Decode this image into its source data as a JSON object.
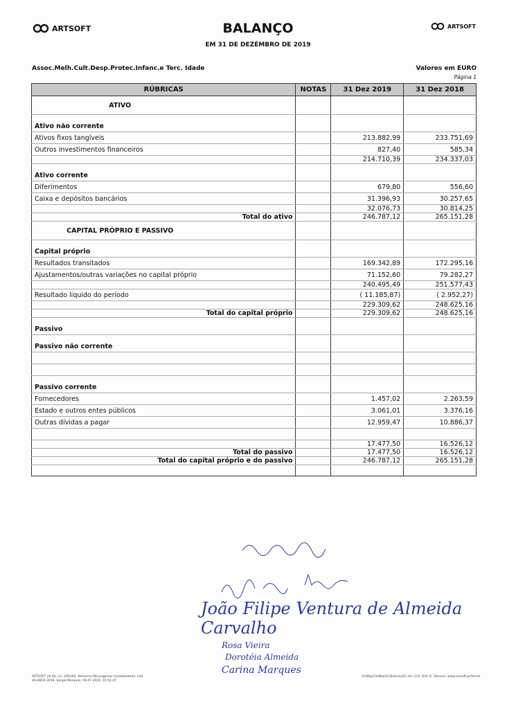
{
  "header": {
    "logo_text": "ARTSOFT",
    "title": "BALANÇO",
    "subtitle": "EM 31 DE DEZÉMBRO DE 2019",
    "entity": "Assoc.Melh.Cult.Desp.Protec.Infanc.e Terc. Idade",
    "units": "Valores em EURO",
    "page": "Página 1"
  },
  "table": {
    "columns": [
      "RÚBRICAS",
      "NOTAS",
      "31 Dez 2019",
      "31 Dez 2018"
    ],
    "rows": [
      {
        "kind": "section",
        "label": "ATIVO",
        "v2019": "",
        "v2018": ""
      },
      {
        "kind": "group",
        "label": "Ativo não corrente",
        "v2019": "",
        "v2018": ""
      },
      {
        "kind": "item",
        "label": "Ativos fixos tangíveis",
        "v2019": "213.882,99",
        "v2018": "233.751,69"
      },
      {
        "kind": "item",
        "label": "Outros investimentos financeiros",
        "v2019": "827,40",
        "v2018": "585,34"
      },
      {
        "kind": "subtotal",
        "label": "",
        "v2019": "214.710,39",
        "v2018": "234.337,03"
      },
      {
        "kind": "group",
        "label": "Ativo corrente",
        "v2019": "",
        "v2018": ""
      },
      {
        "kind": "item",
        "label": "Diferimentos",
        "v2019": "679,80",
        "v2018": "556,60"
      },
      {
        "kind": "item",
        "label": "Caixa e depósitos bancários",
        "v2019": "31.396,93",
        "v2018": "30.257,65"
      },
      {
        "kind": "subtotal",
        "label": "",
        "v2019": "32.076,73",
        "v2018": "30.814,25"
      },
      {
        "kind": "total",
        "label": "Total do ativo",
        "v2019": "246.787,12",
        "v2018": "265.151,28"
      },
      {
        "kind": "section",
        "label": "CAPITAL PRÓPRIO E PASSIVO",
        "v2019": "",
        "v2018": ""
      },
      {
        "kind": "group",
        "label": "Capital próprio",
        "v2019": "",
        "v2018": ""
      },
      {
        "kind": "item",
        "label": "Resultados transitados",
        "v2019": "169.342,89",
        "v2018": "172.295,16"
      },
      {
        "kind": "item",
        "label": "Ajustamentos/outras variações no capital próprio",
        "v2019": "71.152,60",
        "v2018": "79.282,27"
      },
      {
        "kind": "subtotal",
        "label": "",
        "v2019": "240.495,49",
        "v2018": "251.577,43"
      },
      {
        "kind": "item",
        "label": "Resultado liquido do período",
        "v2019": "( 11.185,87)",
        "v2018": "( 2.952,27)"
      },
      {
        "kind": "subtotal",
        "label": "",
        "v2019": "229.309,62",
        "v2018": "248.625,16"
      },
      {
        "kind": "total",
        "label": "Total do capital próprio",
        "v2019": "229.309,62",
        "v2018": "248.625,16"
      },
      {
        "kind": "group",
        "label": "Passivo",
        "v2019": "",
        "v2018": ""
      },
      {
        "kind": "group",
        "label": "Passivo não corrente",
        "v2019": "",
        "v2018": ""
      },
      {
        "kind": "item",
        "label": "",
        "v2019": "",
        "v2018": ""
      },
      {
        "kind": "item",
        "label": "",
        "v2019": "",
        "v2018": ""
      },
      {
        "kind": "group",
        "label": "Passivo corrente",
        "v2019": "",
        "v2018": ""
      },
      {
        "kind": "item",
        "label": "Fornecedores",
        "v2019": "1.457,02",
        "v2018": "2.263,59"
      },
      {
        "kind": "item",
        "label": "Estado e outros entes públicos",
        "v2019": "3.061,01",
        "v2018": "3.376,16"
      },
      {
        "kind": "item",
        "label": "Outras dívidas a pagar",
        "v2019": "12.959,47",
        "v2018": "10.886,37"
      },
      {
        "kind": "item",
        "label": "",
        "v2019": "",
        "v2018": ""
      },
      {
        "kind": "subtotal",
        "label": "",
        "v2019": "17.477,50",
        "v2018": "16.526,12"
      },
      {
        "kind": "total",
        "label": "Total do passivo",
        "v2019": "17.477,50",
        "v2018": "16.526,12"
      },
      {
        "kind": "total",
        "label": "Total do capital próprio e do passivo",
        "v2019": "246.787,12",
        "v2018": "265.151,28"
      },
      {
        "kind": "last",
        "label": "",
        "v2019": "",
        "v2018": ""
      }
    ]
  },
  "signatures": [
    "João Filipe Ventura de Almeida Carvalho",
    "Rosa Vieira",
    "Dorotéia Almeida",
    "Carina Marques"
  ],
  "footer": {
    "left_line1": "ARTSOFT v8.50, Lic: 200362, Números Mensageiros Contabilidade, Lda",
    "left_line2": "VILABOA 2019, Sergio Marques, 09.07.2020, 15:52:47",
    "right": "ClsMap\\ClsMap01-BalançoSC.txt v3.0, Ord: 0, Tahoma, www.artsoft.pt/forms"
  },
  "colors": {
    "header_fill": "#c9c9c9",
    "ink_blue": "#2b3a9a"
  }
}
